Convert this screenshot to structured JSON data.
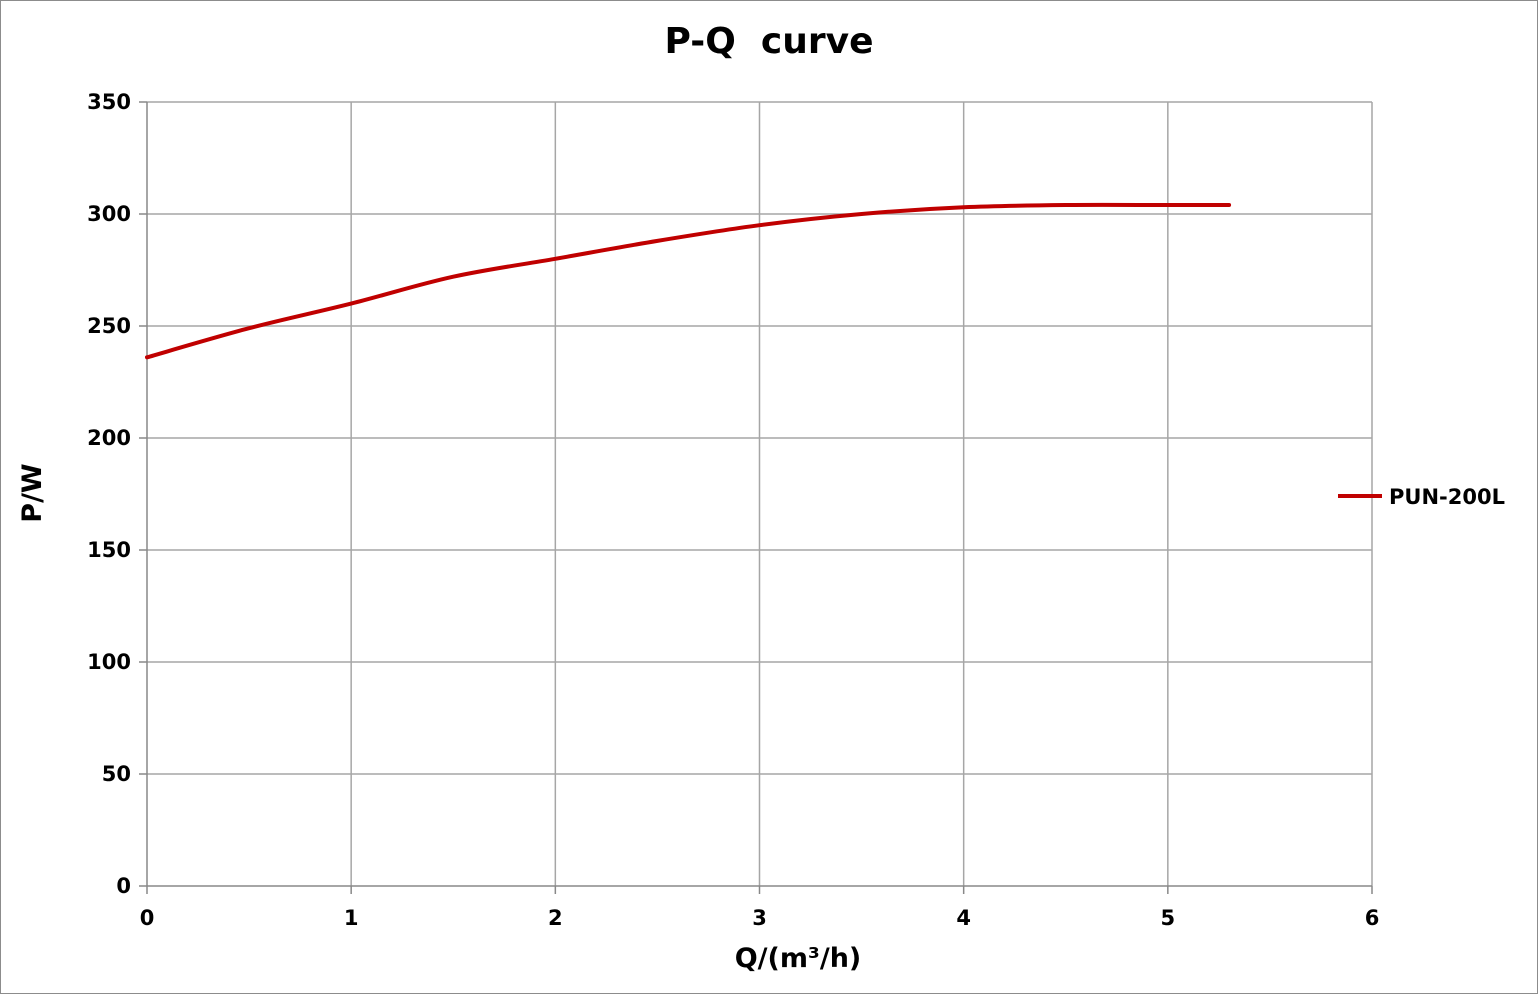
{
  "chart_data": {
    "type": "line",
    "title": "P-Q  curve",
    "xlabel": "Q/(m³/h)",
    "ylabel": "P/W",
    "xlim": [
      0,
      6
    ],
    "ylim": [
      0,
      350
    ],
    "x_ticks": [
      "0",
      "1",
      "2",
      "3",
      "4",
      "5",
      "6"
    ],
    "y_ticks": [
      "0",
      "50",
      "100",
      "150",
      "200",
      "250",
      "300",
      "350"
    ],
    "grid": true,
    "legend_position": "right",
    "series": [
      {
        "name": "PUN-200L",
        "color": "#c00000",
        "x": [
          0,
          0.5,
          1.0,
          1.5,
          2.0,
          2.5,
          3.0,
          3.5,
          4.0,
          4.5,
          5.0,
          5.3
        ],
        "y": [
          236,
          249,
          260,
          272,
          280,
          288,
          295,
          300,
          303,
          304,
          304,
          304
        ]
      }
    ]
  }
}
